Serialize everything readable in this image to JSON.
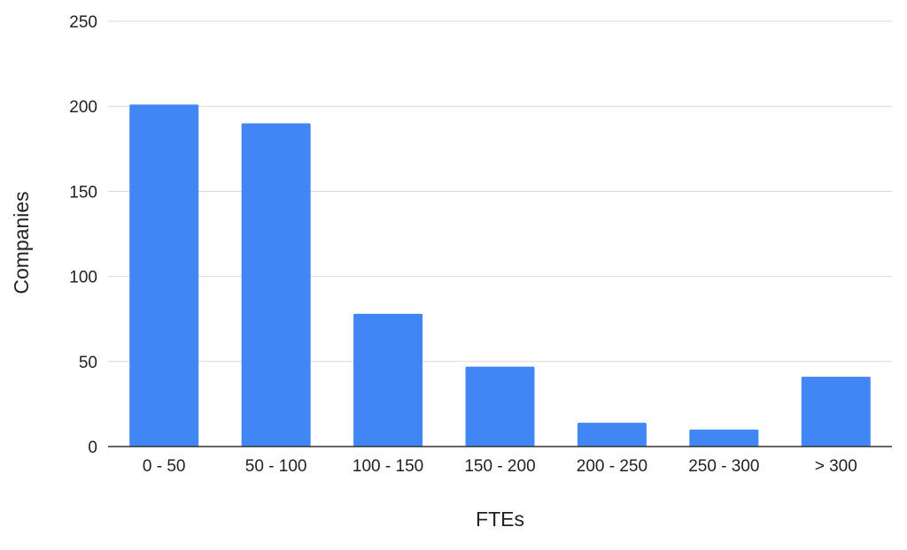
{
  "chart_data": {
    "type": "bar",
    "xlabel": "FTEs",
    "ylabel": "Companies",
    "categories": [
      "0 - 50",
      "50 - 100",
      "100 - 150",
      "150 - 200",
      "200 - 250",
      "250 - 300",
      "> 300"
    ],
    "series": [
      {
        "values": [
          201,
          190,
          78,
          47,
          14,
          10,
          41
        ],
        "color": "#4285f4"
      }
    ],
    "ylim": [
      0,
      250
    ],
    "yticks": [
      0,
      50,
      100,
      150,
      200,
      250
    ],
    "grid": true,
    "legend": "none"
  }
}
